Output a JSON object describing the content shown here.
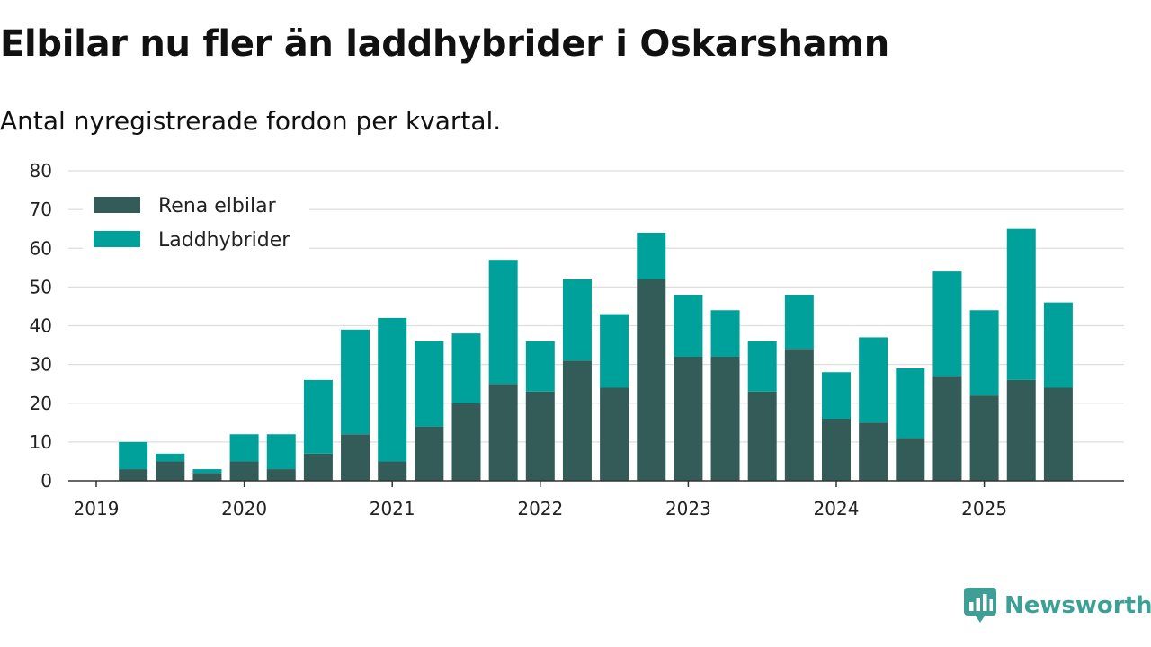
{
  "header": {
    "title": "Elbilar nu fler än laddhybrider i Oskarshamn",
    "subtitle": "Antal nyregistrerade fordon per kvartal."
  },
  "branding": {
    "name": "Newsworthy",
    "icon": "newsworthy-logo-icon",
    "color": "#3d9f95"
  },
  "chart_data": {
    "type": "bar",
    "stacked": true,
    "categories": [
      "2019 Q1",
      "2019 Q2",
      "2019 Q3",
      "2019 Q4",
      "2020 Q1",
      "2020 Q2",
      "2020 Q3",
      "2020 Q4",
      "2021 Q1",
      "2021 Q2",
      "2021 Q3",
      "2021 Q4",
      "2022 Q1",
      "2022 Q2",
      "2022 Q3",
      "2022 Q4",
      "2023 Q1",
      "2023 Q2",
      "2023 Q3",
      "2023 Q4",
      "2024 Q1",
      "2024 Q2",
      "2024 Q3",
      "2024 Q4",
      "2025 Q1",
      "2025 Q2",
      "2025 Q3"
    ],
    "series": [
      {
        "name": "Rena elbilar",
        "color": "#335c58",
        "values": [
          0,
          3,
          5,
          2,
          5,
          3,
          7,
          12,
          5,
          14,
          20,
          25,
          23,
          31,
          24,
          52,
          32,
          32,
          23,
          34,
          16,
          15,
          11,
          27,
          22,
          26,
          24
        ]
      },
      {
        "name": "Laddhybrider",
        "color": "#00a19a",
        "values": [
          0,
          7,
          2,
          1,
          7,
          9,
          19,
          27,
          37,
          22,
          18,
          32,
          13,
          21,
          19,
          12,
          16,
          12,
          13,
          14,
          12,
          22,
          18,
          27,
          22,
          39,
          22
        ]
      }
    ],
    "x_tick_labels": [
      "2019",
      "2020",
      "2021",
      "2022",
      "2023",
      "2024",
      "2025"
    ],
    "y_ticks": [
      0,
      10,
      20,
      30,
      40,
      50,
      60,
      70,
      80
    ],
    "ylim": [
      0,
      80
    ],
    "xlabel": "",
    "ylabel": "",
    "grid": true,
    "legend_position": "top-left"
  }
}
